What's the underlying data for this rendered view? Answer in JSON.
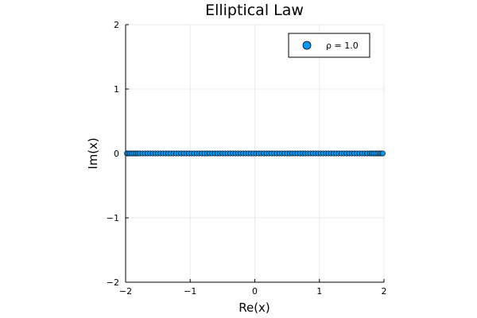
{
  "chart_data": {
    "type": "scatter",
    "title": "Elliptical Law",
    "xlabel": "Re(x)",
    "ylabel": "Im(x)",
    "xlim": [
      -2,
      2
    ],
    "ylim": [
      -2,
      2
    ],
    "xticks": [
      "−2",
      "−1",
      "0",
      "1",
      "2"
    ],
    "yticks": [
      "−2",
      "−1",
      "0",
      "1",
      "2"
    ],
    "grid": true,
    "legend_position": "top-right",
    "series": [
      {
        "name": "ρ = 1.0",
        "color": "#009af9",
        "x": [
          -1.98,
          -1.955,
          -1.93,
          -1.9,
          -1.87,
          -1.84,
          -1.81,
          -1.78,
          -1.74,
          -1.7,
          -1.66,
          -1.62,
          -1.58,
          -1.54,
          -1.5,
          -1.46,
          -1.42,
          -1.38,
          -1.34,
          -1.3,
          -1.26,
          -1.22,
          -1.18,
          -1.14,
          -1.1,
          -1.06,
          -1.02,
          -0.98,
          -0.94,
          -0.9,
          -0.86,
          -0.82,
          -0.78,
          -0.74,
          -0.7,
          -0.66,
          -0.62,
          -0.58,
          -0.54,
          -0.5,
          -0.46,
          -0.42,
          -0.38,
          -0.34,
          -0.3,
          -0.26,
          -0.22,
          -0.18,
          -0.14,
          -0.1,
          -0.06,
          -0.02,
          0.02,
          0.06,
          0.1,
          0.14,
          0.18,
          0.22,
          0.26,
          0.3,
          0.34,
          0.38,
          0.42,
          0.46,
          0.5,
          0.54,
          0.58,
          0.62,
          0.66,
          0.7,
          0.74,
          0.78,
          0.82,
          0.86,
          0.9,
          0.94,
          0.98,
          1.02,
          1.06,
          1.1,
          1.14,
          1.18,
          1.22,
          1.26,
          1.3,
          1.34,
          1.38,
          1.42,
          1.46,
          1.5,
          1.54,
          1.58,
          1.62,
          1.66,
          1.7,
          1.74,
          1.78,
          1.81,
          1.84,
          1.87,
          1.9,
          1.93,
          1.955,
          1.98
        ],
        "y": [
          0,
          0,
          0,
          0,
          0,
          0,
          0,
          0,
          0,
          0,
          0,
          0,
          0,
          0,
          0,
          0,
          0,
          0,
          0,
          0,
          0,
          0,
          0,
          0,
          0,
          0,
          0,
          0,
          0,
          0,
          0,
          0,
          0,
          0,
          0,
          0,
          0,
          0,
          0,
          0,
          0,
          0,
          0,
          0,
          0,
          0,
          0,
          0,
          0,
          0,
          0,
          0,
          0,
          0,
          0,
          0,
          0,
          0,
          0,
          0,
          0,
          0,
          0,
          0,
          0,
          0,
          0,
          0,
          0,
          0,
          0,
          0,
          0,
          0,
          0,
          0,
          0,
          0,
          0,
          0,
          0,
          0,
          0,
          0,
          0,
          0,
          0,
          0,
          0,
          0,
          0,
          0,
          0,
          0,
          0,
          0,
          0,
          0,
          0,
          0,
          0,
          0,
          0,
          0
        ]
      }
    ]
  }
}
